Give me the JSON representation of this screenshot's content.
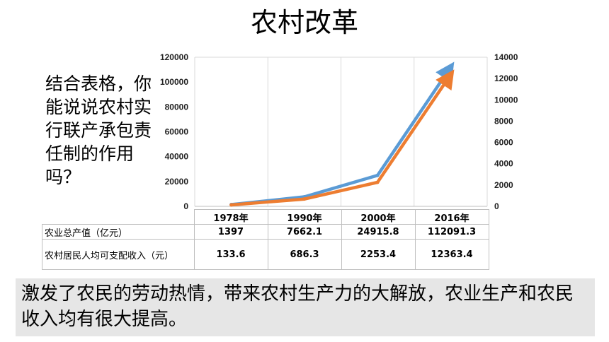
{
  "title": "农村改革",
  "question": "结合表格，你能说说农村实行联产承包责任制的作用吗？",
  "chart_data": {
    "type": "line",
    "categories": [
      "1978年",
      "1990年",
      "2000年",
      "2016年"
    ],
    "series": [
      {
        "name": "农业总产值（亿元）",
        "axis": "left",
        "color": "#5b9bd5",
        "values": [
          1397,
          7662.1,
          24915.8,
          112091.3
        ],
        "labels": [
          "1397",
          "7662.1",
          "24915.8",
          "112091.3"
        ]
      },
      {
        "name": "农村居民人均可支配收入（元）",
        "axis": "right",
        "color": "#ed7d31",
        "values": [
          133.6,
          686.3,
          2253.4,
          12363.4
        ],
        "labels": [
          "133.6",
          "686.3",
          "2253.4",
          "12363.4"
        ]
      }
    ],
    "left_axis": {
      "ylim": [
        0,
        120000
      ],
      "ticks": [
        "0",
        "20000",
        "40000",
        "60000",
        "80000",
        "100000",
        "120000"
      ],
      "tick_values": [
        0,
        20000,
        40000,
        60000,
        80000,
        100000,
        120000
      ]
    },
    "right_axis": {
      "ylim": [
        0,
        14000
      ],
      "ticks": [
        "0",
        "2000",
        "4000",
        "6000",
        "8000",
        "10000",
        "12000",
        "14000"
      ],
      "tick_values": [
        0,
        2000,
        4000,
        6000,
        8000,
        10000,
        12000,
        14000
      ]
    },
    "grid": "vertical",
    "legend": "table"
  },
  "table": {
    "row1_label": "农业总产值（亿元）",
    "row2_label": "农村居民人均可支配收入（元）"
  },
  "conclusion": "激发了农民的劳动热情，带来农村生产力的大解放，农业生产和农民收入均有很大提高。"
}
